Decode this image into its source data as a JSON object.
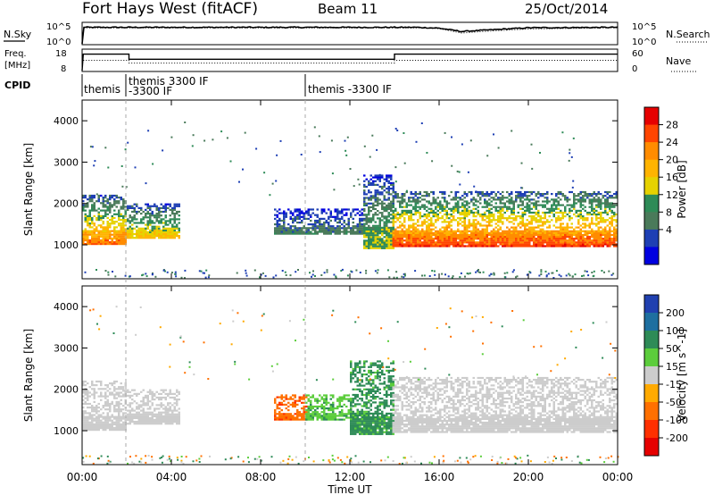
{
  "header": {
    "title": "Fort Hays West (fitACF)",
    "beam": "Beam 11",
    "date": "25/Oct/2014"
  },
  "panel_nsky": {
    "left_label": "N.Sky",
    "right_label": "N.Search",
    "left_ticks": [
      "10^5",
      "10^0"
    ],
    "right_ticks": [
      "10^5",
      "10^0"
    ]
  },
  "panel_freq": {
    "left_label_line1": "Freq.",
    "left_label_line2": "[MHz]",
    "right_label": "Nave",
    "left_ticks": [
      "18",
      "8"
    ],
    "right_ticks": [
      "60",
      "0"
    ]
  },
  "panel_cpid": {
    "label": "CPID",
    "segments": [
      {
        "start_hour": 0.0,
        "line1": "themis",
        "line2": ""
      },
      {
        "start_hour": 2.1,
        "line1": "themis 3300 IF",
        "line2": "-3300 IF"
      },
      {
        "start_hour": 10.0,
        "line1": "themis -3300 IF",
        "line2": ""
      }
    ]
  },
  "axes": {
    "xlabel": "Time UT",
    "x_ticks": [
      "00:00",
      "04:00",
      "08:00",
      "12:00",
      "16:00",
      "20:00",
      "00:00"
    ],
    "ylabel": "Slant Range [km]",
    "y_ticks": [
      "4000",
      "3000",
      "2000",
      "1000"
    ]
  },
  "colorbar_power": {
    "label": "Power [dB]",
    "ticks": [
      "28",
      "24",
      "20",
      "16",
      "12",
      "8",
      "4"
    ],
    "colors": [
      "#e60000",
      "#ff4500",
      "#ff8c00",
      "#ffb400",
      "#e6d200",
      "#2e8b57",
      "#4a7a5a",
      "#1e3fb4",
      "#0000e0"
    ]
  },
  "colorbar_velocity": {
    "label": "Velocity [m s^-1]",
    "ticks": [
      "200",
      "100",
      "50",
      "15",
      "-15",
      "-50",
      "-100",
      "-200"
    ],
    "colors": [
      "#2040b0",
      "#1e6fa0",
      "#2e8b57",
      "#5ccd3c",
      "#cccccc",
      "#ffaa00",
      "#ff7000",
      "#ff3000",
      "#e60000"
    ]
  },
  "chart_data": [
    {
      "type": "line",
      "name": "N.Sky / N.Search",
      "x_unit": "hours UT",
      "x": [
        0,
        0.05,
        2,
        4,
        8,
        12,
        15,
        16,
        17,
        18,
        20,
        24
      ],
      "nsky": [
        0,
        4.0,
        4.0,
        4.0,
        4.0,
        4.0,
        4.0,
        3.8,
        3.0,
        3.3,
        3.9,
        4.0
      ],
      "nsearch": [
        0,
        3.9,
        3.9,
        3.9,
        3.9,
        3.9,
        3.9,
        3.7,
        2.6,
        3.0,
        3.6,
        3.9
      ],
      "ylim": [
        0,
        5
      ]
    },
    {
      "type": "line",
      "name": "Freq / Nave",
      "x_unit": "hours UT",
      "frequency_MHz": [
        {
          "x": 0,
          "y": 8
        },
        {
          "x": 0.05,
          "y": 16
        },
        {
          "x": 2.1,
          "y": 16
        },
        {
          "x": 2.1,
          "y": 13.5
        },
        {
          "x": 14.0,
          "y": 13.5
        },
        {
          "x": 14.0,
          "y": 16
        },
        {
          "x": 24,
          "y": 16
        }
      ],
      "nave": [
        {
          "x": 0.05,
          "y": 30
        },
        {
          "x": 2.1,
          "y": 30
        },
        {
          "x": 2.1,
          "y": 22
        },
        {
          "x": 14.0,
          "y": 22
        },
        {
          "x": 14.0,
          "y": 30
        },
        {
          "x": 24,
          "y": 30
        }
      ],
      "ylim_freq": [
        8,
        18
      ],
      "ylim_nave": [
        0,
        60
      ]
    },
    {
      "type": "heatmap",
      "name": "Power",
      "x_unit": "hours UT",
      "y_unit": "km",
      "xlim": [
        0,
        24
      ],
      "ylim": [
        180,
        4500
      ],
      "clim": [
        0,
        30
      ],
      "regions": [
        {
          "x0": 0.0,
          "x1": 2.0,
          "r_low": 1000,
          "r_high": 2200,
          "core": 24
        },
        {
          "x0": 2.0,
          "x1": 4.4,
          "r_low": 1150,
          "r_high": 2000,
          "core": 18
        },
        {
          "x0": 8.6,
          "x1": 12.6,
          "r_low": 1250,
          "r_high": 1850,
          "core": 8
        },
        {
          "x0": 12.6,
          "x1": 13.9,
          "r_low": 900,
          "r_high": 2700,
          "core": 14
        },
        {
          "x0": 13.9,
          "x1": 24.0,
          "r_low": 950,
          "r_high": 2300,
          "core": 27
        }
      ]
    },
    {
      "type": "heatmap",
      "name": "Velocity",
      "x_unit": "hours UT",
      "y_unit": "km",
      "xlim": [
        0,
        24
      ],
      "ylim": [
        180,
        4500
      ],
      "clim": [
        -250,
        250
      ],
      "regions": [
        {
          "x0": 0.0,
          "x1": 2.0,
          "r_low": 1000,
          "r_high": 2200,
          "core": 0
        },
        {
          "x0": 2.0,
          "x1": 4.4,
          "r_low": 1150,
          "r_high": 2000,
          "core": 0
        },
        {
          "x0": 8.6,
          "x1": 10.0,
          "r_low": 1250,
          "r_high": 1850,
          "core": -90
        },
        {
          "x0": 10.0,
          "x1": 12.0,
          "r_low": 1250,
          "r_high": 1850,
          "core": 40
        },
        {
          "x0": 12.0,
          "x1": 13.9,
          "r_low": 900,
          "r_high": 2700,
          "core": 60
        },
        {
          "x0": 13.9,
          "x1": 24.0,
          "r_low": 950,
          "r_high": 2300,
          "core": 0
        }
      ]
    }
  ]
}
